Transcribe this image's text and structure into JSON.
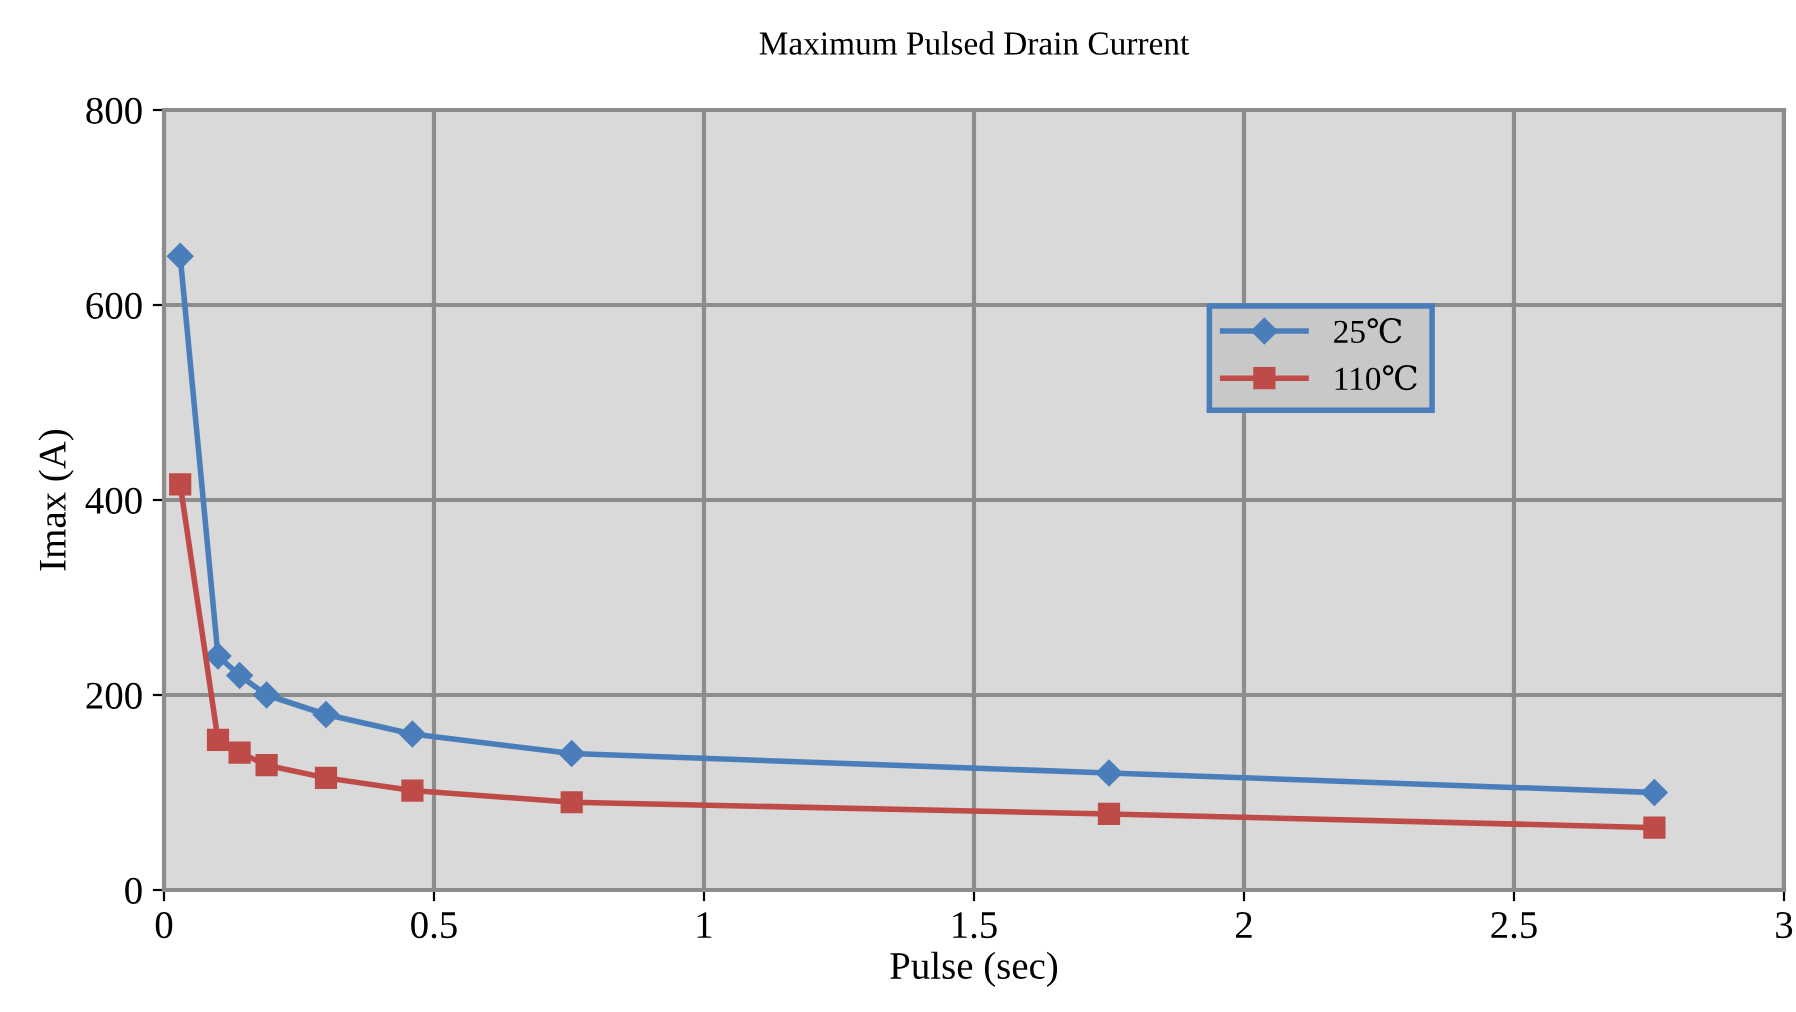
{
  "chart_data": {
    "type": "line",
    "title": "Maximum Pulsed Drain Current",
    "xlabel": "Pulse (sec)",
    "ylabel": "Imax (A)",
    "x": [
      0.03,
      0.1,
      0.14,
      0.19,
      0.3,
      0.46,
      0.755,
      1.75,
      2.76
    ],
    "series": [
      {
        "name": "25℃",
        "color": "#4a7ebb",
        "marker": "diamond",
        "values": [
          650,
          240,
          220,
          200,
          180,
          160,
          140,
          120,
          100
        ]
      },
      {
        "name": "110℃",
        "color": "#be4b48",
        "marker": "square",
        "values": [
          416,
          154,
          141,
          128,
          115,
          102,
          90,
          78,
          64
        ]
      }
    ],
    "xlim": [
      0,
      3
    ],
    "xticks": [
      0,
      0.5,
      1,
      1.5,
      2,
      2.5,
      3
    ],
    "ylim": [
      0,
      800
    ],
    "yticks": [
      0,
      200,
      400,
      600,
      800
    ],
    "grid": true,
    "legend": "top right",
    "line_style": "solid"
  }
}
